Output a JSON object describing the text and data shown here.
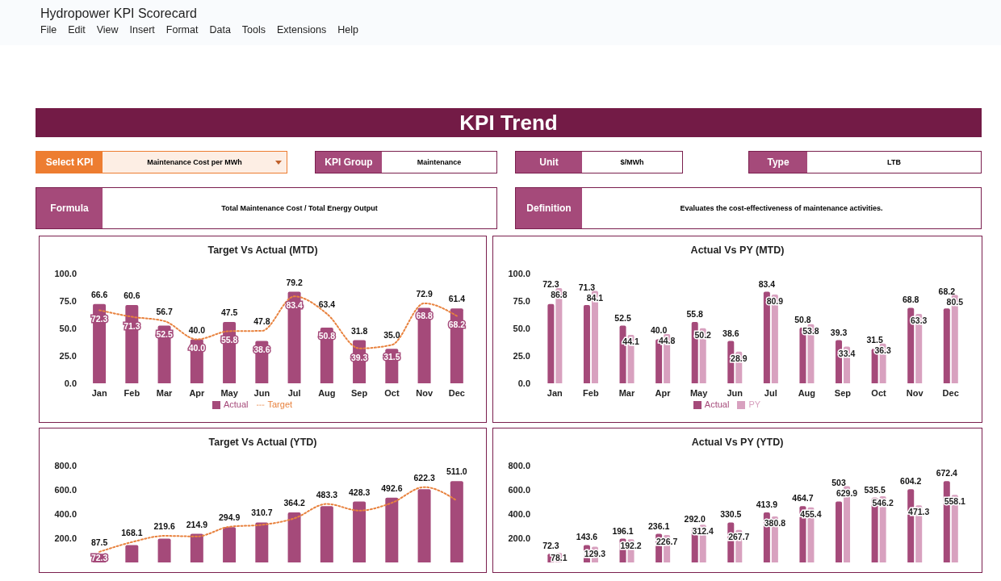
{
  "chart_data": [
    {
      "type": "other",
      "title": "Hydropower KPI Scorecard",
      "annotations": [
        "File",
        "Edit",
        "View",
        "Insert",
        "Format",
        "Data",
        "Tools",
        "Extensions",
        "Help"
      ]
    },
    {
      "type": "other",
      "title": "KPI Trend",
      "annotations": [
        "Select KPI",
        "Maintenance Cost per MWh",
        "KPI Group",
        "Maintenance",
        "Unit",
        "$/MWh",
        "Type",
        "LTB",
        "Formula",
        "Total Maintenance Cost / Total Energy Output",
        "Definition",
        "Evaluates the cost-effectiveness of maintenance activities."
      ]
    },
    {
      "type": "bar",
      "title": "Target Vs Actual (MTD)",
      "categories": [
        "Jan",
        "Feb",
        "Mar",
        "Apr",
        "May",
        "Jun",
        "Jul",
        "Aug",
        "Sep",
        "Oct",
        "Nov",
        "Dec"
      ],
      "ylim": [
        0,
        100
      ],
      "yticks": [
        {
          "value": 0,
          "label": "0.0"
        },
        {
          "value": 25,
          "label": "25.0"
        },
        {
          "value": 50,
          "label": "50.0"
        },
        {
          "value": 75,
          "label": "75.0"
        },
        {
          "value": 100,
          "label": "100.0"
        }
      ],
      "legend": "bottom",
      "data_labels": true,
      "series": [
        {
          "name": "Actual",
          "type": "bar",
          "color": "#a54a7a",
          "values": [
            72.3,
            71.3,
            52.5,
            40.0,
            55.8,
            38.6,
            83.4,
            50.8,
            39.3,
            31.5,
            68.8,
            68.2
          ],
          "value_labels": [
            "72.3",
            "71.3",
            "52.5",
            "40.0",
            "55.8",
            "38.6",
            "83.4",
            "50.8",
            "39.3",
            "31.5",
            "68.8",
            "68.2"
          ]
        },
        {
          "name": "Target",
          "type": "line",
          "color": "#e8823e",
          "line_style": "dotted",
          "marker": "none",
          "values": [
            66.6,
            60.6,
            56.7,
            40.0,
            47.5,
            47.8,
            79.2,
            63.4,
            31.8,
            35.0,
            72.9,
            61.4
          ],
          "value_labels": [
            "66.6",
            "60.6",
            "56.7",
            "40.0",
            "47.5",
            "47.8",
            "79.2",
            "63.4",
            "31.8",
            "35.0",
            "72.9",
            "61.4"
          ]
        }
      ]
    },
    {
      "type": "bar",
      "title": "Actual Vs PY (MTD)",
      "categories": [
        "Jan",
        "Feb",
        "Mar",
        "Apr",
        "May",
        "Jun",
        "Jul",
        "Aug",
        "Sep",
        "Oct",
        "Nov",
        "Dec"
      ],
      "ylim": [
        0,
        100
      ],
      "yticks": [
        {
          "value": 0,
          "label": "0.0"
        },
        {
          "value": 25,
          "label": "25.0"
        },
        {
          "value": 50,
          "label": "50.0"
        },
        {
          "value": 75,
          "label": "75.0"
        },
        {
          "value": 100,
          "label": "100.0"
        }
      ],
      "legend": "bottom",
      "data_labels": true,
      "series": [
        {
          "name": "Actual",
          "color": "#a54a7a",
          "values": [
            72.3,
            71.3,
            52.5,
            40.0,
            55.8,
            38.6,
            83.4,
            50.8,
            39.3,
            31.5,
            68.8,
            68.2
          ],
          "value_labels": [
            "72.3",
            "71.3",
            "52.5",
            "40.0",
            "55.8",
            "38.6",
            "83.4",
            "50.8",
            "39.3",
            "31.5",
            "68.8",
            "68.2"
          ]
        },
        {
          "name": "PY",
          "color": "#d8a1bf",
          "values": [
            86.8,
            84.1,
            44.1,
            44.8,
            50.2,
            28.9,
            80.9,
            53.8,
            33.4,
            36.3,
            63.3,
            80.5
          ],
          "value_labels": [
            "86.8",
            "84.1",
            "44.1",
            "44.8",
            "50.2",
            "28.9",
            "80.9",
            "53.8",
            "33.4",
            "36.3",
            "63.3",
            "80.5"
          ]
        }
      ]
    },
    {
      "type": "bar",
      "title": "Target Vs Actual (YTD)",
      "categories": [
        null,
        null,
        null,
        null,
        null,
        null,
        null,
        null,
        null,
        null,
        null,
        null
      ],
      "ylim": [
        0,
        800
      ],
      "yticks": [
        {
          "value": 200,
          "label": "200.0"
        },
        {
          "value": 400,
          "label": "400.0"
        },
        {
          "value": 600,
          "label": "600.0"
        },
        {
          "value": 800,
          "label": "800.0"
        }
      ],
      "tick_labels": "y",
      "series": [
        {
          "type": "bar",
          "color": "#a54a7a",
          "values": [
            72.3,
            143.6,
            196.1,
            236.1,
            292.0,
            330.5,
            413.9,
            464.7,
            503,
            535.5,
            604.2,
            672.4
          ],
          "value_labels": [
            "72.3",
            null,
            null,
            null,
            null,
            null,
            null,
            null,
            null,
            null,
            null,
            null
          ]
        },
        {
          "type": "line",
          "color": "#e8823e",
          "line_style": "dotted",
          "marker": "none",
          "values": [
            87.5,
            168.1,
            219.6,
            214.9,
            294.9,
            310.7,
            364.2,
            483.3,
            428.3,
            492.6,
            622.3,
            511.0
          ],
          "value_labels": [
            "87.5",
            "168.1",
            "219.6",
            "214.9",
            "294.9",
            "310.7",
            "364.2",
            "483.3",
            "428.3",
            "492.6",
            "622.3",
            "511.0"
          ]
        }
      ]
    },
    {
      "type": "bar",
      "title": "Actual Vs PY (YTD)",
      "categories": [
        null,
        null,
        null,
        null,
        null,
        null,
        null,
        null,
        null,
        null,
        null,
        null
      ],
      "ylim": [
        0,
        800
      ],
      "yticks": [
        {
          "value": 200,
          "label": "200.0"
        },
        {
          "value": 400,
          "label": "400.0"
        },
        {
          "value": 600,
          "label": "600.0"
        },
        {
          "value": 800,
          "label": "800.0"
        }
      ],
      "tick_labels": "y",
      "series": [
        {
          "color": "#a54a7a",
          "values": [
            72.3,
            143.6,
            196.1,
            236.1,
            292.0,
            330.5,
            413.9,
            464.7,
            503,
            535.5,
            604.2,
            672.4
          ],
          "value_labels": [
            "72.3",
            "143.6",
            "196.1",
            "236.1",
            "292.0",
            "330.5",
            "413.9",
            "464.7",
            "503",
            "535.5",
            "604.2",
            "672.4"
          ]
        },
        {
          "color": "#d8a1bf",
          "values": [
            78.1,
            129.3,
            192.2,
            226.7,
            312.4,
            267.7,
            380.8,
            455.4,
            629.9,
            546.2,
            471.3,
            558.1
          ],
          "value_labels": [
            "78.1",
            "129.3",
            "192.2",
            "226.7",
            "312.4",
            "267.7",
            "380.8",
            "455.4",
            "629.9",
            "546.2",
            "471.3",
            "558.1"
          ]
        }
      ]
    }
  ]
}
